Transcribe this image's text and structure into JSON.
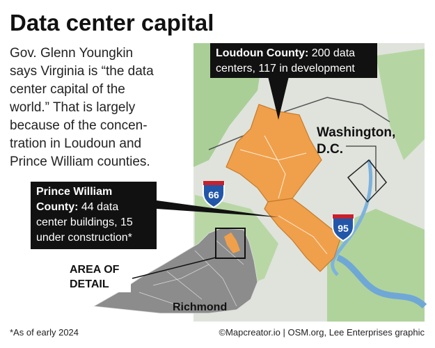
{
  "title": "Data center capital",
  "intro": {
    "lines": [
      "Gov. Glenn Youngkin",
      "says Virginia is “the data",
      "center capital of the",
      "world.” That is largely",
      "because of the concen-",
      "tration in Loudoun and",
      "Prince William counties."
    ]
  },
  "callouts": {
    "loudoun": {
      "label": "Loudoun County:",
      "text_lines": [
        "200 data",
        "centers, 117 in development"
      ]
    },
    "prince_william": {
      "label_lines": [
        "Prince William",
        "County:"
      ],
      "text_lines": [
        "44 data",
        "center buildings, 15",
        "under construction*"
      ]
    }
  },
  "map_labels": {
    "washington": [
      "Washington,",
      "D.C."
    ],
    "interstate_66": "66",
    "interstate_95": "95",
    "area_of_detail": [
      "AREA OF",
      "DETAIL"
    ],
    "richmond": "Richmond"
  },
  "footer": {
    "note": "*As of early 2024",
    "credit": "©Mapcreator.io | OSM.org, Lee Enterprises graphic"
  }
}
